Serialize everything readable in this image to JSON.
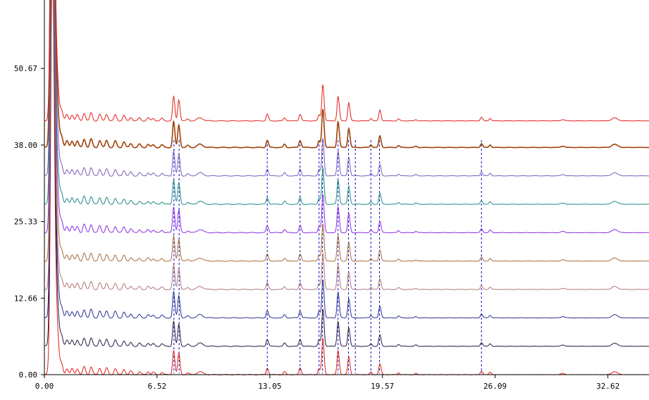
{
  "chart_data": {
    "type": "line",
    "title": "",
    "xlabel": "",
    "ylabel": "",
    "xlim": [
      0,
      35.0
    ],
    "ylim": [
      0,
      62
    ],
    "x_ticks": [
      0.0,
      6.52,
      13.05,
      19.57,
      26.09,
      32.62
    ],
    "x_tick_labels": [
      "0.00",
      "6.52",
      "13.05",
      "19.57",
      "26.09",
      "32.62"
    ],
    "y_ticks": [
      0.0,
      12.66,
      25.33,
      38.0,
      50.67
    ],
    "y_tick_labels": [
      "0.00",
      "12.66",
      "25.33",
      "38.00",
      "50.67"
    ],
    "grid": false,
    "legend": "none",
    "reference_lines": [
      7.5,
      7.8,
      12.9,
      14.8,
      15.9,
      16.1,
      17.0,
      17.6,
      18.0,
      18.9,
      19.4,
      25.3
    ],
    "reference_line_color": "#0000cc",
    "peaks": [
      {
        "x": 0.45,
        "h": 60,
        "w": 0.09
      },
      {
        "x": 0.55,
        "h": 14,
        "w": 0.12
      },
      {
        "x": 0.75,
        "h": 3.5,
        "w": 0.1
      },
      {
        "x": 1.0,
        "h": 1.5,
        "w": 0.07
      },
      {
        "x": 1.3,
        "h": 1.0,
        "w": 0.07
      },
      {
        "x": 1.6,
        "h": 1.0,
        "w": 0.07
      },
      {
        "x": 1.9,
        "h": 1.0,
        "w": 0.07
      },
      {
        "x": 2.3,
        "h": 1.3,
        "w": 0.07
      },
      {
        "x": 2.7,
        "h": 1.3,
        "w": 0.07
      },
      {
        "x": 3.2,
        "h": 1.1,
        "w": 0.07
      },
      {
        "x": 3.6,
        "h": 1.1,
        "w": 0.07
      },
      {
        "x": 4.1,
        "h": 1.0,
        "w": 0.07
      },
      {
        "x": 4.6,
        "h": 0.9,
        "w": 0.07
      },
      {
        "x": 5.0,
        "h": 0.6,
        "w": 0.07
      },
      {
        "x": 5.5,
        "h": 0.5,
        "w": 0.07
      },
      {
        "x": 6.0,
        "h": 0.5,
        "w": 0.07
      },
      {
        "x": 6.3,
        "h": 0.4,
        "w": 0.07
      },
      {
        "x": 6.8,
        "h": 0.4,
        "w": 0.07
      },
      {
        "x": 7.48,
        "h": 4.0,
        "w": 0.06
      },
      {
        "x": 7.78,
        "h": 3.5,
        "w": 0.06
      },
      {
        "x": 8.3,
        "h": 0.3,
        "w": 0.07
      },
      {
        "x": 9.0,
        "h": 0.5,
        "w": 0.15
      },
      {
        "x": 12.9,
        "h": 1.1,
        "w": 0.06
      },
      {
        "x": 13.9,
        "h": 0.5,
        "w": 0.06
      },
      {
        "x": 14.8,
        "h": 1.1,
        "w": 0.06
      },
      {
        "x": 15.9,
        "h": 1.0,
        "w": 0.06
      },
      {
        "x": 16.12,
        "h": 6.0,
        "w": 0.06
      },
      {
        "x": 17.0,
        "h": 4.0,
        "w": 0.06
      },
      {
        "x": 17.62,
        "h": 3.0,
        "w": 0.06
      },
      {
        "x": 18.9,
        "h": 0.4,
        "w": 0.06
      },
      {
        "x": 19.42,
        "h": 1.8,
        "w": 0.06
      },
      {
        "x": 20.5,
        "h": 0.3,
        "w": 0.06
      },
      {
        "x": 21.5,
        "h": 0.2,
        "w": 0.06
      },
      {
        "x": 25.3,
        "h": 0.6,
        "w": 0.06
      },
      {
        "x": 25.8,
        "h": 0.4,
        "w": 0.06
      },
      {
        "x": 30.0,
        "h": 0.2,
        "w": 0.1
      },
      {
        "x": 33.0,
        "h": 0.5,
        "w": 0.15
      }
    ],
    "series": [
      {
        "color": "#e0201a",
        "baseline": 0.0
      },
      {
        "color": "#2a1740",
        "baseline": 4.7
      },
      {
        "color": "#2a2e8c",
        "baseline": 9.4
      },
      {
        "color": "#b07575",
        "baseline": 14.1
      },
      {
        "color": "#a86a3a",
        "baseline": 18.8
      },
      {
        "color": "#8a2be2",
        "baseline": 23.5
      },
      {
        "color": "#1b8a80",
        "baseline": 28.2
      },
      {
        "color": "#7b5bb8",
        "baseline": 32.9
      },
      {
        "color": "#a0420a",
        "baseline": 37.6
      },
      {
        "color": "#e0201a",
        "baseline": 42.0
      }
    ]
  }
}
